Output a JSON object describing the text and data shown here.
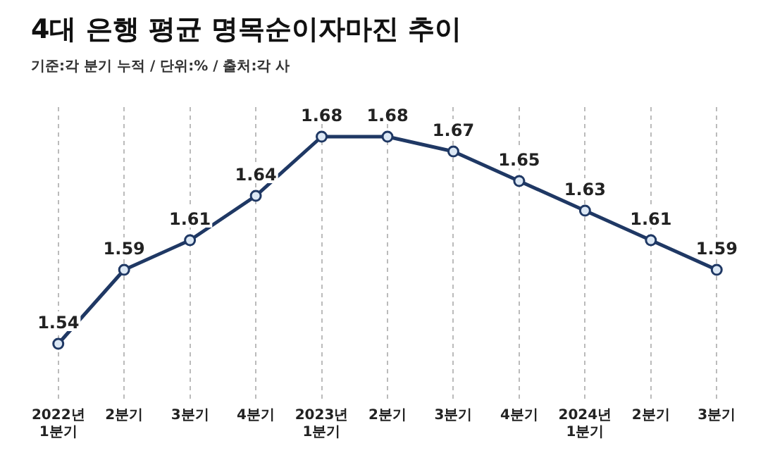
{
  "chart_data": {
    "type": "line",
    "title": "4대 은행 평균 명목순이자마진 추이",
    "subtitle": "기준:각 분기 누적 / 단위:% / 출처:각 사",
    "categories": [
      "2022년\n1분기",
      "2분기",
      "3분기",
      "4분기",
      "2023년\n1분기",
      "2분기",
      "3분기",
      "4분기",
      "2024년\n1분기",
      "2분기",
      "3분기"
    ],
    "series": [
      {
        "color": "#1f3864",
        "values": [
          1.54,
          1.59,
          1.61,
          1.64,
          1.68,
          1.68,
          1.67,
          1.65,
          1.63,
          1.61,
          1.59
        ]
      }
    ],
    "ylim": [
      1.5,
      1.7
    ],
    "tick_labels": "x",
    "grid": "x",
    "legend": false,
    "marker": "circle",
    "line_style": "solid",
    "data_labels": true
  }
}
